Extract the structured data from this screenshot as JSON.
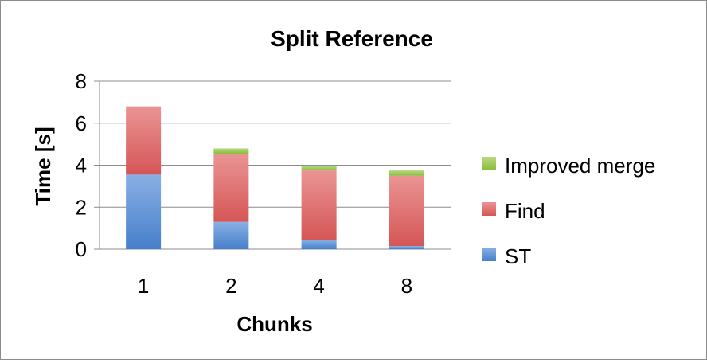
{
  "chart_data": {
    "type": "bar",
    "stacked": true,
    "title": "Split Reference",
    "xlabel": "Chunks",
    "ylabel": "Time [s]",
    "categories": [
      "1",
      "2",
      "4",
      "8"
    ],
    "ylim": [
      0,
      8
    ],
    "yticks": [
      "0",
      "2",
      "4",
      "6",
      "8"
    ],
    "grid": true,
    "legend_position": "right",
    "series": [
      {
        "name": "ST",
        "values": [
          3.55,
          1.3,
          0.45,
          0.15
        ],
        "color": "#4a86d6"
      },
      {
        "name": "Find",
        "values": [
          3.25,
          3.25,
          3.3,
          3.35
        ],
        "color": "#e05a5a"
      },
      {
        "name": "Improved merge",
        "values": [
          0.0,
          0.25,
          0.2,
          0.25
        ],
        "color": "#8fc63f"
      }
    ]
  }
}
